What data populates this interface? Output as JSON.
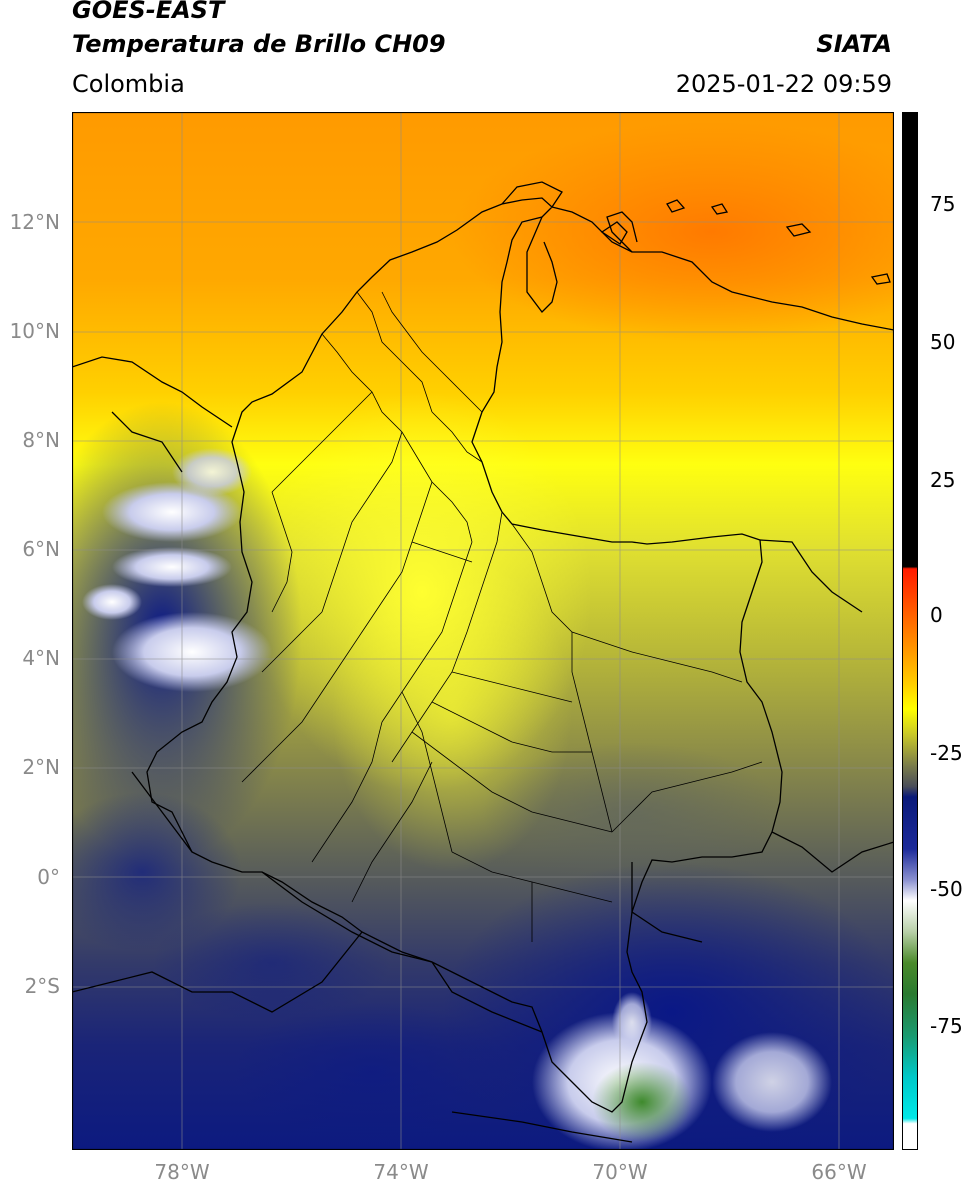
{
  "header": {
    "satellite": "GOES-EAST",
    "product": "Temperatura de Brillo CH09",
    "brand": "SIATA",
    "region": "Colombia",
    "datetime": "2025-01-22 09:59"
  },
  "map": {
    "lat_labels": [
      "12°N",
      "10°N",
      "8°N",
      "6°N",
      "4°N",
      "2°N",
      "0°",
      "2°S"
    ],
    "lon_labels": [
      "78°W",
      "74°W",
      "70°W",
      "66°W"
    ],
    "layers": [
      "brightness-temperature-field",
      "country-borders",
      "department-borders",
      "coastlines",
      "graticule"
    ]
  },
  "colorbar": {
    "ticks": [
      "75",
      "50",
      "25",
      "0",
      "-25",
      "-50",
      "-75"
    ],
    "colors": {
      "warm_top": "#000000",
      "red": "#ff2200",
      "orange": "#ff8c00",
      "yellow": "#ffff00",
      "olive": "#b8b830",
      "gray": "#5a5e5a",
      "navy": "#0a1a7a",
      "white": "#ffffff",
      "green": "#2e7d1e",
      "cyan": "#00e0e0"
    }
  }
}
